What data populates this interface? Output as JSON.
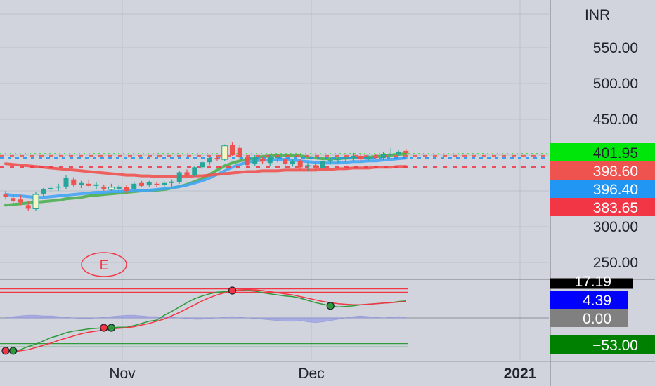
{
  "chart_data": [
    {
      "type": "candlestick",
      "currency_label": "INR",
      "y_ticks": [
        550,
        500,
        450,
        300,
        250
      ],
      "y_tick_labels": [
        "550.00",
        "500.00",
        "450.00",
        "300.00",
        "250.00"
      ],
      "x_tick_labels": [
        "Nov",
        "Dec",
        "2021"
      ],
      "price_tags": [
        {
          "label": "401.95",
          "value": 401.95,
          "color": "#00e60a",
          "text_color": "#1e222d"
        },
        {
          "label": "398.60",
          "value": 398.6,
          "color": "#ef5350",
          "text_color": "#ffffff"
        },
        {
          "label": "396.40",
          "value": 396.4,
          "color": "#2196f3",
          "text_color": "#ffffff"
        },
        {
          "label": "383.65",
          "value": 383.65,
          "color": "#f23645",
          "text_color": "#ffffff"
        }
      ],
      "event_marker": "E",
      "candles": [
        {
          "o": 345,
          "h": 350,
          "l": 338,
          "c": 342
        },
        {
          "o": 340,
          "h": 346,
          "l": 333,
          "c": 336
        },
        {
          "o": 338,
          "h": 344,
          "l": 330,
          "c": 334
        },
        {
          "o": 330,
          "h": 336,
          "l": 322,
          "c": 325
        },
        {
          "o": 325,
          "h": 348,
          "l": 322,
          "c": 345
        },
        {
          "o": 346,
          "h": 354,
          "l": 342,
          "c": 352
        },
        {
          "o": 352,
          "h": 357,
          "l": 348,
          "c": 354
        },
        {
          "o": 355,
          "h": 360,
          "l": 350,
          "c": 356
        },
        {
          "o": 356,
          "h": 372,
          "l": 352,
          "c": 368
        },
        {
          "o": 366,
          "h": 369,
          "l": 356,
          "c": 358
        },
        {
          "o": 358,
          "h": 364,
          "l": 354,
          "c": 361
        },
        {
          "o": 360,
          "h": 366,
          "l": 355,
          "c": 357
        },
        {
          "o": 357,
          "h": 362,
          "l": 352,
          "c": 359
        },
        {
          "o": 356,
          "h": 359,
          "l": 350,
          "c": 353
        },
        {
          "o": 355,
          "h": 360,
          "l": 350,
          "c": 352
        },
        {
          "o": 353,
          "h": 358,
          "l": 349,
          "c": 356
        },
        {
          "o": 355,
          "h": 358,
          "l": 347,
          "c": 350
        },
        {
          "o": 352,
          "h": 362,
          "l": 350,
          "c": 360
        },
        {
          "o": 361,
          "h": 364,
          "l": 355,
          "c": 357
        },
        {
          "o": 358,
          "h": 364,
          "l": 356,
          "c": 362
        },
        {
          "o": 360,
          "h": 363,
          "l": 355,
          "c": 358
        },
        {
          "o": 358,
          "h": 363,
          "l": 355,
          "c": 361
        },
        {
          "o": 361,
          "h": 366,
          "l": 356,
          "c": 363
        },
        {
          "o": 362,
          "h": 378,
          "l": 360,
          "c": 376
        },
        {
          "o": 376,
          "h": 380,
          "l": 370,
          "c": 372
        },
        {
          "o": 372,
          "h": 385,
          "l": 370,
          "c": 383
        },
        {
          "o": 383,
          "h": 392,
          "l": 380,
          "c": 390
        },
        {
          "o": 390,
          "h": 398,
          "l": 386,
          "c": 396
        },
        {
          "o": 396,
          "h": 399,
          "l": 392,
          "c": 394
        },
        {
          "o": 394,
          "h": 415,
          "l": 392,
          "c": 413
        },
        {
          "o": 414,
          "h": 418,
          "l": 399,
          "c": 400
        },
        {
          "o": 410,
          "h": 414,
          "l": 395,
          "c": 397
        },
        {
          "o": 397,
          "h": 400,
          "l": 384,
          "c": 386
        },
        {
          "o": 388,
          "h": 400,
          "l": 385,
          "c": 396
        },
        {
          "o": 395,
          "h": 398,
          "l": 388,
          "c": 391
        },
        {
          "o": 389,
          "h": 400,
          "l": 385,
          "c": 397
        },
        {
          "o": 396,
          "h": 401,
          "l": 390,
          "c": 398
        },
        {
          "o": 394,
          "h": 398,
          "l": 385,
          "c": 388
        },
        {
          "o": 388,
          "h": 395,
          "l": 384,
          "c": 391
        },
        {
          "o": 392,
          "h": 395,
          "l": 380,
          "c": 383
        },
        {
          "o": 384,
          "h": 390,
          "l": 378,
          "c": 386
        },
        {
          "o": 386,
          "h": 390,
          "l": 378,
          "c": 382
        },
        {
          "o": 382,
          "h": 394,
          "l": 380,
          "c": 392
        },
        {
          "o": 391,
          "h": 396,
          "l": 387,
          "c": 393
        },
        {
          "o": 393,
          "h": 397,
          "l": 389,
          "c": 395
        },
        {
          "o": 394,
          "h": 399,
          "l": 390,
          "c": 397
        },
        {
          "o": 396,
          "h": 403,
          "l": 392,
          "c": 399
        },
        {
          "o": 399,
          "h": 401,
          "l": 392,
          "c": 394
        },
        {
          "o": 394,
          "h": 400,
          "l": 391,
          "c": 398
        },
        {
          "o": 398,
          "h": 402,
          "l": 394,
          "c": 396
        },
        {
          "o": 396,
          "h": 404,
          "l": 393,
          "c": 401
        },
        {
          "o": 401,
          "h": 410,
          "l": 398,
          "c": 402
        },
        {
          "o": 402,
          "h": 407,
          "l": 399,
          "c": 405
        },
        {
          "o": 406,
          "h": 408,
          "l": 400,
          "c": 403
        }
      ],
      "moving_averages": [
        {
          "color": "#4caf50",
          "values": [
            330,
            331,
            332,
            333,
            334,
            335,
            336,
            337,
            339,
            340,
            341,
            343,
            344,
            345,
            346,
            347,
            348,
            349,
            350,
            350,
            351,
            352,
            354,
            356,
            359,
            363,
            367,
            373,
            379,
            385,
            389,
            392,
            394,
            396,
            398,
            399,
            400,
            400,
            400,
            399,
            397,
            396,
            395,
            395,
            395,
            396,
            396,
            397,
            397,
            398,
            399,
            400,
            401,
            402
          ]
        },
        {
          "color": "#42a5f5",
          "values": [
            345,
            344,
            343,
            342,
            341,
            341,
            342,
            343,
            344,
            345,
            346,
            347,
            348,
            348,
            349,
            349,
            350,
            350,
            351,
            351,
            352,
            353,
            354,
            356,
            358,
            361,
            364,
            368,
            373,
            378,
            383,
            387,
            390,
            392,
            393,
            393,
            394,
            394,
            393,
            392,
            391,
            390,
            389,
            389,
            389,
            390,
            391,
            391,
            392,
            392,
            393,
            394,
            395,
            396
          ]
        },
        {
          "color": "#ef5350",
          "values": [
            388,
            387,
            386,
            385,
            384,
            383,
            382,
            381,
            380,
            379,
            378,
            377,
            376,
            375,
            374,
            373,
            372,
            372,
            371,
            371,
            370,
            370,
            370,
            370,
            370,
            371,
            371,
            372,
            373,
            374,
            375,
            376,
            377,
            377,
            378,
            378,
            378,
            379,
            379,
            379,
            379,
            379,
            380,
            380,
            381,
            381,
            382,
            382,
            382,
            383,
            383,
            383,
            384,
            384
          ]
        }
      ]
    },
    {
      "type": "oscillator",
      "value_tags": [
        {
          "label": "17.19",
          "value": 17.19,
          "color": "#000000",
          "text_color": "#ffffff"
        },
        {
          "label": "4.39",
          "value": 4.39,
          "color": "#0000ff",
          "text_color": "#ffffff"
        },
        {
          "label": "0.00",
          "value": 0,
          "color": "#808080",
          "text_color": "#ffffff"
        },
        {
          "label": "−53.00",
          "value": -53,
          "color": "#008000",
          "text_color": "#ffffff"
        }
      ],
      "levels": [
        {
          "value": 53,
          "color": "#f23645"
        },
        {
          "value": 47,
          "color": "#f23645"
        },
        {
          "value": -47,
          "color": "#2e9a3a"
        },
        {
          "value": -53,
          "color": "#2e9a3a"
        }
      ],
      "series": [
        {
          "color": "#2e9a3a",
          "values": [
            -60,
            -60,
            -58,
            -52,
            -48,
            -42,
            -36,
            -32,
            -27,
            -24,
            -22,
            -20,
            -19,
            -18,
            -18,
            -17,
            -17,
            -14,
            -10,
            -6,
            -4,
            5,
            12,
            20,
            28,
            35,
            40,
            44,
            47,
            48,
            50,
            51,
            50,
            49,
            46,
            44,
            42,
            40,
            39,
            36,
            32,
            28,
            25,
            22,
            20,
            21,
            22,
            24,
            25,
            26,
            27,
            28,
            30,
            31
          ]
        },
        {
          "color": "#f23645",
          "values": [
            -63,
            -62,
            -60,
            -58,
            -54,
            -50,
            -46,
            -41,
            -37,
            -33,
            -29,
            -26,
            -24,
            -22,
            -20,
            -19,
            -18,
            -16,
            -13,
            -10,
            -6,
            -2,
            4,
            10,
            17,
            24,
            31,
            37,
            42,
            46,
            49,
            51,
            52,
            51,
            50,
            48,
            46,
            44,
            42,
            39,
            36,
            33,
            30,
            28,
            26,
            25,
            24,
            24,
            25,
            26,
            27,
            28,
            29,
            30
          ]
        }
      ],
      "histogram": [
        1,
        2,
        3,
        4,
        4,
        3,
        3,
        2,
        1,
        0,
        -1,
        -1,
        0,
        1,
        2,
        3,
        4,
        4,
        3,
        2,
        2,
        1,
        1,
        0,
        -1,
        -2,
        -2,
        -1,
        0,
        1,
        2,
        1,
        0,
        -1,
        -2,
        -3,
        -4,
        -5,
        -5,
        -4,
        -6,
        -7,
        -6,
        -4,
        -2,
        0,
        2,
        3,
        2,
        1,
        0,
        1,
        2,
        1
      ]
    }
  ]
}
